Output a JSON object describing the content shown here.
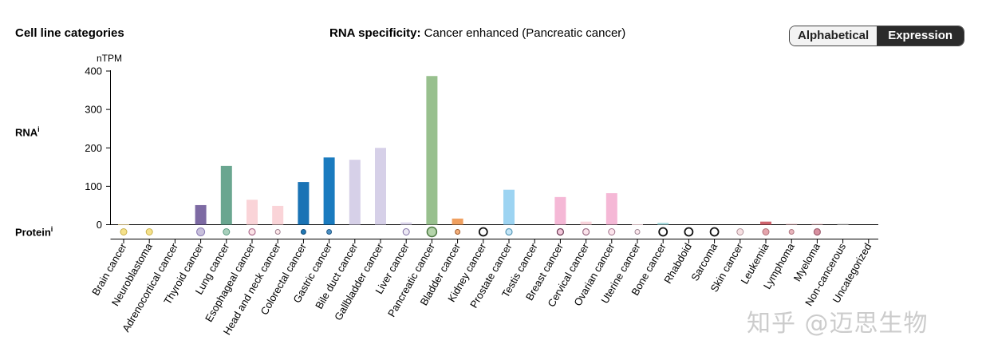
{
  "header": {
    "section_title": "Cell line categories",
    "specificity_label": "RNA specificity:",
    "specificity_value": "Cancer enhanced (Pancreatic cancer)",
    "sort_options": [
      "Alphabetical",
      "Expression"
    ],
    "active_sort": "Expression"
  },
  "rows": {
    "rna": "RNA",
    "protein": "Protein",
    "info_marker": "i"
  },
  "watermark": "知乎 @迈思生物",
  "chart_data": {
    "type": "bar",
    "title": "",
    "ylabel": "nTPM",
    "ylim": [
      0,
      400
    ],
    "yticks": [
      0,
      100,
      200,
      300,
      400
    ],
    "categories": [
      "Brain cancer",
      "Neuroblastoma",
      "Adrenocortical cancer",
      "Thyroid cancer",
      "Lung cancer",
      "Esophageal cancer",
      "Head and neck cancer",
      "Colorectal cancer",
      "Gastric cancer",
      "Bile duct cancer",
      "Gallbladder cancer",
      "Liver cancer",
      "Pancreatic cancer",
      "Bladder cancer",
      "Kidney cancer",
      "Prostate cancer",
      "Testis cancer",
      "Breast cancer",
      "Cervical cancer",
      "Ovarian cancer",
      "Uterine cancer",
      "Bone cancer",
      "Rhabdoid",
      "Sarcoma",
      "Skin cancer",
      "Leukemia",
      "Lymphoma",
      "Myeloma",
      "Non-cancerous",
      "Uncategorized"
    ],
    "values": [
      0.5,
      0,
      0,
      51,
      153,
      65,
      49,
      111,
      175,
      169,
      200,
      6,
      387,
      16,
      0,
      91,
      0,
      72,
      8,
      82,
      1,
      5,
      0,
      0,
      0,
      8,
      2,
      2,
      3,
      0
    ],
    "bar_colors": [
      "#f5d98b",
      "#f5d98b",
      "#dddddd",
      "#7d6aa3",
      "#6aa690",
      "#fad4d8",
      "#fad4d8",
      "#1a73b5",
      "#1a7bbf",
      "#d6d0e8",
      "#d6d0e8",
      "#dcd6ec",
      "#98c08e",
      "#f0a060",
      "#cccccc",
      "#9dd4f2",
      "#dddddd",
      "#f5b8d6",
      "#fad4dc",
      "#f5b8d6",
      "#fad4dc",
      "#a8dde0",
      "#cccccc",
      "#cccccc",
      "#f2d4d8",
      "#d0646e",
      "#e4b4b8",
      "#e4b4b8",
      "#dddddd",
      "#dddddd"
    ],
    "protein": [
      {
        "fill": "#f5e18a",
        "stroke": "#c9b04a",
        "r": 4,
        "w": 1
      },
      {
        "fill": "#f5e18a",
        "stroke": "#c9b04a",
        "r": 4,
        "w": 1
      },
      null,
      {
        "fill": "#c8c0dc",
        "stroke": "#8a7ab4",
        "r": 5,
        "w": 1
      },
      {
        "fill": "#a8d0bc",
        "stroke": "#5a9a80",
        "r": 4,
        "w": 1
      },
      {
        "fill": "#fbe2e6",
        "stroke": "#b07090",
        "r": 4,
        "w": 1.2
      },
      {
        "fill": "#fde8ea",
        "stroke": "#a08090",
        "r": 3,
        "w": 1
      },
      {
        "fill": "#1f78b4",
        "stroke": "#1a4f7a",
        "r": 3,
        "w": 1
      },
      {
        "fill": "#4a90c4",
        "stroke": "#2a5f8a",
        "r": 3,
        "w": 1
      },
      null,
      null,
      {
        "fill": "#ece8f4",
        "stroke": "#8070a4",
        "r": 4,
        "w": 1
      },
      {
        "fill": "#b4d4aa",
        "stroke": "#4e7a44",
        "r": 6,
        "w": 1.5
      },
      {
        "fill": "#f4b07c",
        "stroke": "#a05a2a",
        "r": 3,
        "w": 1
      },
      {
        "fill": "#ffffff",
        "stroke": "#111111",
        "r": 5,
        "w": 1.8
      },
      {
        "fill": "#c4e6f8",
        "stroke": "#5a9ab8",
        "r": 4,
        "w": 1.2
      },
      null,
      {
        "fill": "#f4c8dc",
        "stroke": "#6a3a52",
        "r": 4,
        "w": 1.2
      },
      {
        "fill": "#fce4ec",
        "stroke": "#a07088",
        "r": 4,
        "w": 1.2
      },
      {
        "fill": "#fce4ec",
        "stroke": "#a07088",
        "r": 4,
        "w": 1
      },
      {
        "fill": "#fde8ee",
        "stroke": "#a08896",
        "r": 3,
        "w": 1
      },
      {
        "fill": "#ffffff",
        "stroke": "#111111",
        "r": 5,
        "w": 1.8
      },
      {
        "fill": "#ffffff",
        "stroke": "#111111",
        "r": 5,
        "w": 1.8
      },
      {
        "fill": "#ffffff",
        "stroke": "#111111",
        "r": 5,
        "w": 1.8
      },
      {
        "fill": "#f6e0e2",
        "stroke": "#b09098",
        "r": 4,
        "w": 1
      },
      {
        "fill": "#e4a4ac",
        "stroke": "#b07078",
        "r": 4,
        "w": 1
      },
      {
        "fill": "#e8b4bc",
        "stroke": "#b07880",
        "r": 3,
        "w": 1
      },
      {
        "fill": "#d890a0",
        "stroke": "#a06070",
        "r": 4,
        "w": 1.2
      },
      null,
      null
    ]
  }
}
